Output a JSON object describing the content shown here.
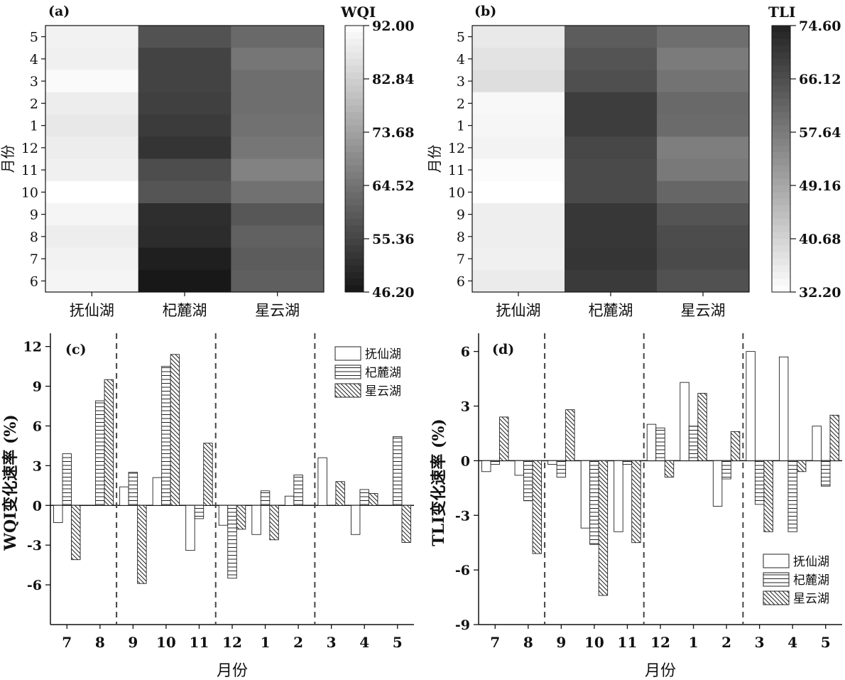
{
  "chart_data": [
    {
      "id": "a",
      "type": "heatmap",
      "panel_label": "(a)",
      "title": "WQI",
      "ylabel": "月份",
      "categories": [
        "抚仙湖",
        "杞麓湖",
        "星云湖"
      ],
      "months": [
        "5",
        "4",
        "3",
        "2",
        "1",
        "12",
        "11",
        "10",
        "9",
        "8",
        "7",
        "6"
      ],
      "colorbar": {
        "ticks": [
          "92.00",
          "82.84",
          "73.68",
          "64.52",
          "55.36",
          "46.20"
        ],
        "min": 46.2,
        "max": 92.0,
        "orientation": "low-dark",
        "label_gray": {
          "46.20": "#161616",
          "92.00": "#ffffff"
        }
      },
      "values": [
        [
          89.5,
          58.0,
          62.5
        ],
        [
          89.0,
          55.0,
          65.0
        ],
        [
          91.0,
          55.0,
          63.5
        ],
        [
          88.5,
          54.5,
          63.5
        ],
        [
          87.5,
          53.5,
          64.0
        ],
        [
          88.5,
          52.0,
          65.0
        ],
        [
          89.0,
          57.0,
          67.5
        ],
        [
          92.0,
          58.5,
          64.0
        ],
        [
          90.0,
          51.0,
          59.0
        ],
        [
          88.5,
          50.5,
          61.0
        ],
        [
          89.5,
          48.0,
          60.0
        ],
        [
          90.0,
          46.5,
          60.5
        ]
      ]
    },
    {
      "id": "b",
      "type": "heatmap",
      "panel_label": "(b)",
      "title": "TLI",
      "ylabel": "月份",
      "categories": [
        "抚仙湖",
        "杞麓湖",
        "星云湖"
      ],
      "months": [
        "5",
        "4",
        "3",
        "2",
        "1",
        "12",
        "11",
        "10",
        "9",
        "8",
        "7",
        "6"
      ],
      "colorbar": {
        "ticks": [
          "74.60",
          "66.12",
          "57.64",
          "49.16",
          "40.68",
          "32.20"
        ],
        "min": 32.2,
        "max": 74.6,
        "orientation": "high-dark",
        "label_gray": {
          "74.60": "#222222",
          "32.20": "#ffffff"
        }
      },
      "values": [
        [
          36.5,
          63.5,
          60.0
        ],
        [
          37.5,
          65.0,
          57.5
        ],
        [
          38.5,
          66.0,
          59.0
        ],
        [
          33.5,
          69.5,
          61.0
        ],
        [
          34.0,
          69.5,
          60.5
        ],
        [
          34.5,
          67.5,
          57.0
        ],
        [
          33.0,
          67.0,
          58.0
        ],
        [
          32.2,
          67.0,
          61.5
        ],
        [
          35.5,
          70.5,
          65.0
        ],
        [
          35.5,
          70.5,
          66.5
        ],
        [
          35.0,
          71.0,
          67.0
        ],
        [
          36.0,
          70.0,
          65.5
        ]
      ]
    },
    {
      "id": "c",
      "type": "bar",
      "panel_label": "(c)",
      "ylabel": "WQI变化速率 (%)",
      "xlabel": "月份",
      "categories": [
        "7",
        "8",
        "9",
        "10",
        "11",
        "12",
        "1",
        "2",
        "3",
        "4",
        "5"
      ],
      "ylim": [
        -9,
        13
      ],
      "yticks": [
        -6,
        -3,
        0,
        3,
        6,
        9,
        12
      ],
      "legend_position": "top-right",
      "season_dividers_after": [
        "8",
        "11",
        "2"
      ],
      "series": [
        {
          "name": "抚仙湖",
          "pattern": "empty",
          "values": [
            -1.3,
            null,
            1.4,
            2.1,
            -3.4,
            -1.5,
            -2.2,
            0.7,
            3.6,
            -2.2,
            null
          ]
        },
        {
          "name": "杞麓湖",
          "pattern": "horizontal",
          "values": [
            3.9,
            7.9,
            2.5,
            10.5,
            -1.0,
            -5.5,
            1.1,
            2.3,
            null,
            1.2,
            5.2
          ]
        },
        {
          "name": "星云湖",
          "pattern": "diagonal",
          "values": [
            -4.1,
            9.5,
            -5.9,
            11.4,
            4.7,
            -1.8,
            -2.6,
            null,
            1.8,
            0.9,
            -2.8
          ]
        }
      ]
    },
    {
      "id": "d",
      "type": "bar",
      "panel_label": "(d)",
      "ylabel": "TLI变化速率 (%)",
      "xlabel": "月份",
      "categories": [
        "7",
        "8",
        "9",
        "10",
        "11",
        "12",
        "1",
        "2",
        "3",
        "4",
        "5"
      ],
      "ylim": [
        -9,
        7
      ],
      "yticks": [
        -9,
        -6,
        -3,
        0,
        3,
        6
      ],
      "legend_position": "bottom-right",
      "season_dividers_after": [
        "8",
        "11",
        "2"
      ],
      "series": [
        {
          "name": "抚仙湖",
          "pattern": "empty",
          "values": [
            -0.6,
            -0.8,
            -0.2,
            -3.7,
            -3.9,
            2.0,
            4.3,
            -2.5,
            6.0,
            5.7,
            1.9
          ]
        },
        {
          "name": "杞麓湖",
          "pattern": "horizontal",
          "values": [
            -0.2,
            -2.2,
            -0.9,
            -4.6,
            -0.2,
            1.8,
            1.9,
            -1.0,
            -2.4,
            -3.9,
            -1.4
          ]
        },
        {
          "name": "星云湖",
          "pattern": "diagonal",
          "values": [
            2.4,
            -5.1,
            2.8,
            -7.4,
            -4.5,
            -0.9,
            3.7,
            1.6,
            -3.9,
            -0.6,
            2.5
          ]
        }
      ]
    }
  ]
}
